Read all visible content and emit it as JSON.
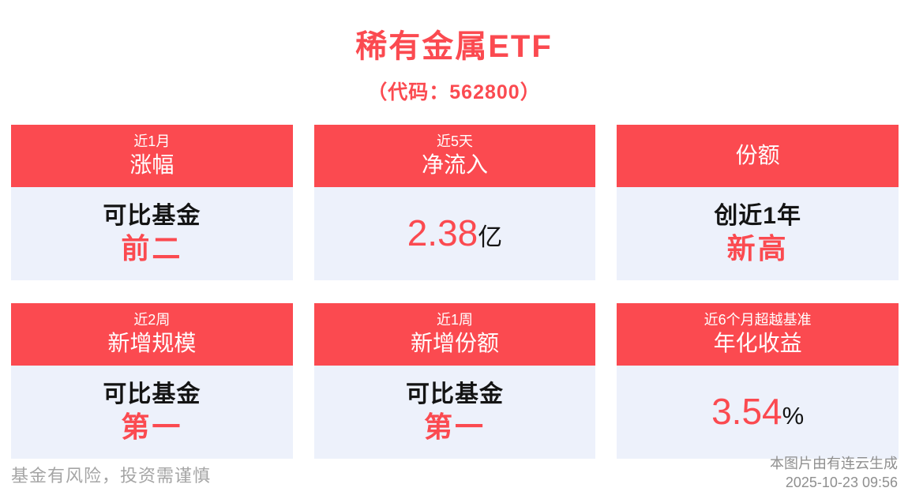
{
  "page": {
    "title": "稀有金属ETF",
    "subtitle": "（代码：562800）"
  },
  "cards": [
    {
      "tag": "近1月",
      "metric": "涨幅",
      "line1": "可比基金",
      "highlight": "前二",
      "suffix": ""
    },
    {
      "tag": "近5天",
      "metric": "净流入",
      "line1": "",
      "highlight": "2.38",
      "suffix": "亿"
    },
    {
      "tag": "",
      "metric": "份额",
      "line1": "创近1年",
      "highlight": "新高",
      "suffix": ""
    },
    {
      "tag": "近2周",
      "metric": "新增规模",
      "line1": "可比基金",
      "highlight": "第一",
      "suffix": ""
    },
    {
      "tag": "近1周",
      "metric": "新增份额",
      "line1": "可比基金",
      "highlight": "第一",
      "suffix": ""
    },
    {
      "tag": "近6个月超越基准",
      "metric": "年化收益",
      "line1": "",
      "highlight": "3.54",
      "suffix": "%"
    }
  ],
  "footer": {
    "disclaimer": "基金有风险，投资需谨慎",
    "credit_line1": "本图片由有连云生成",
    "credit_line2": "2025-10-23 09:56"
  },
  "colors": {
    "accent_red": "#fb4a50",
    "card_body_bg": "#edf1fb",
    "text_dark": "#141414",
    "disclaimer_gray": "#a5a5a5",
    "credit_gray": "#8f8f8f"
  }
}
